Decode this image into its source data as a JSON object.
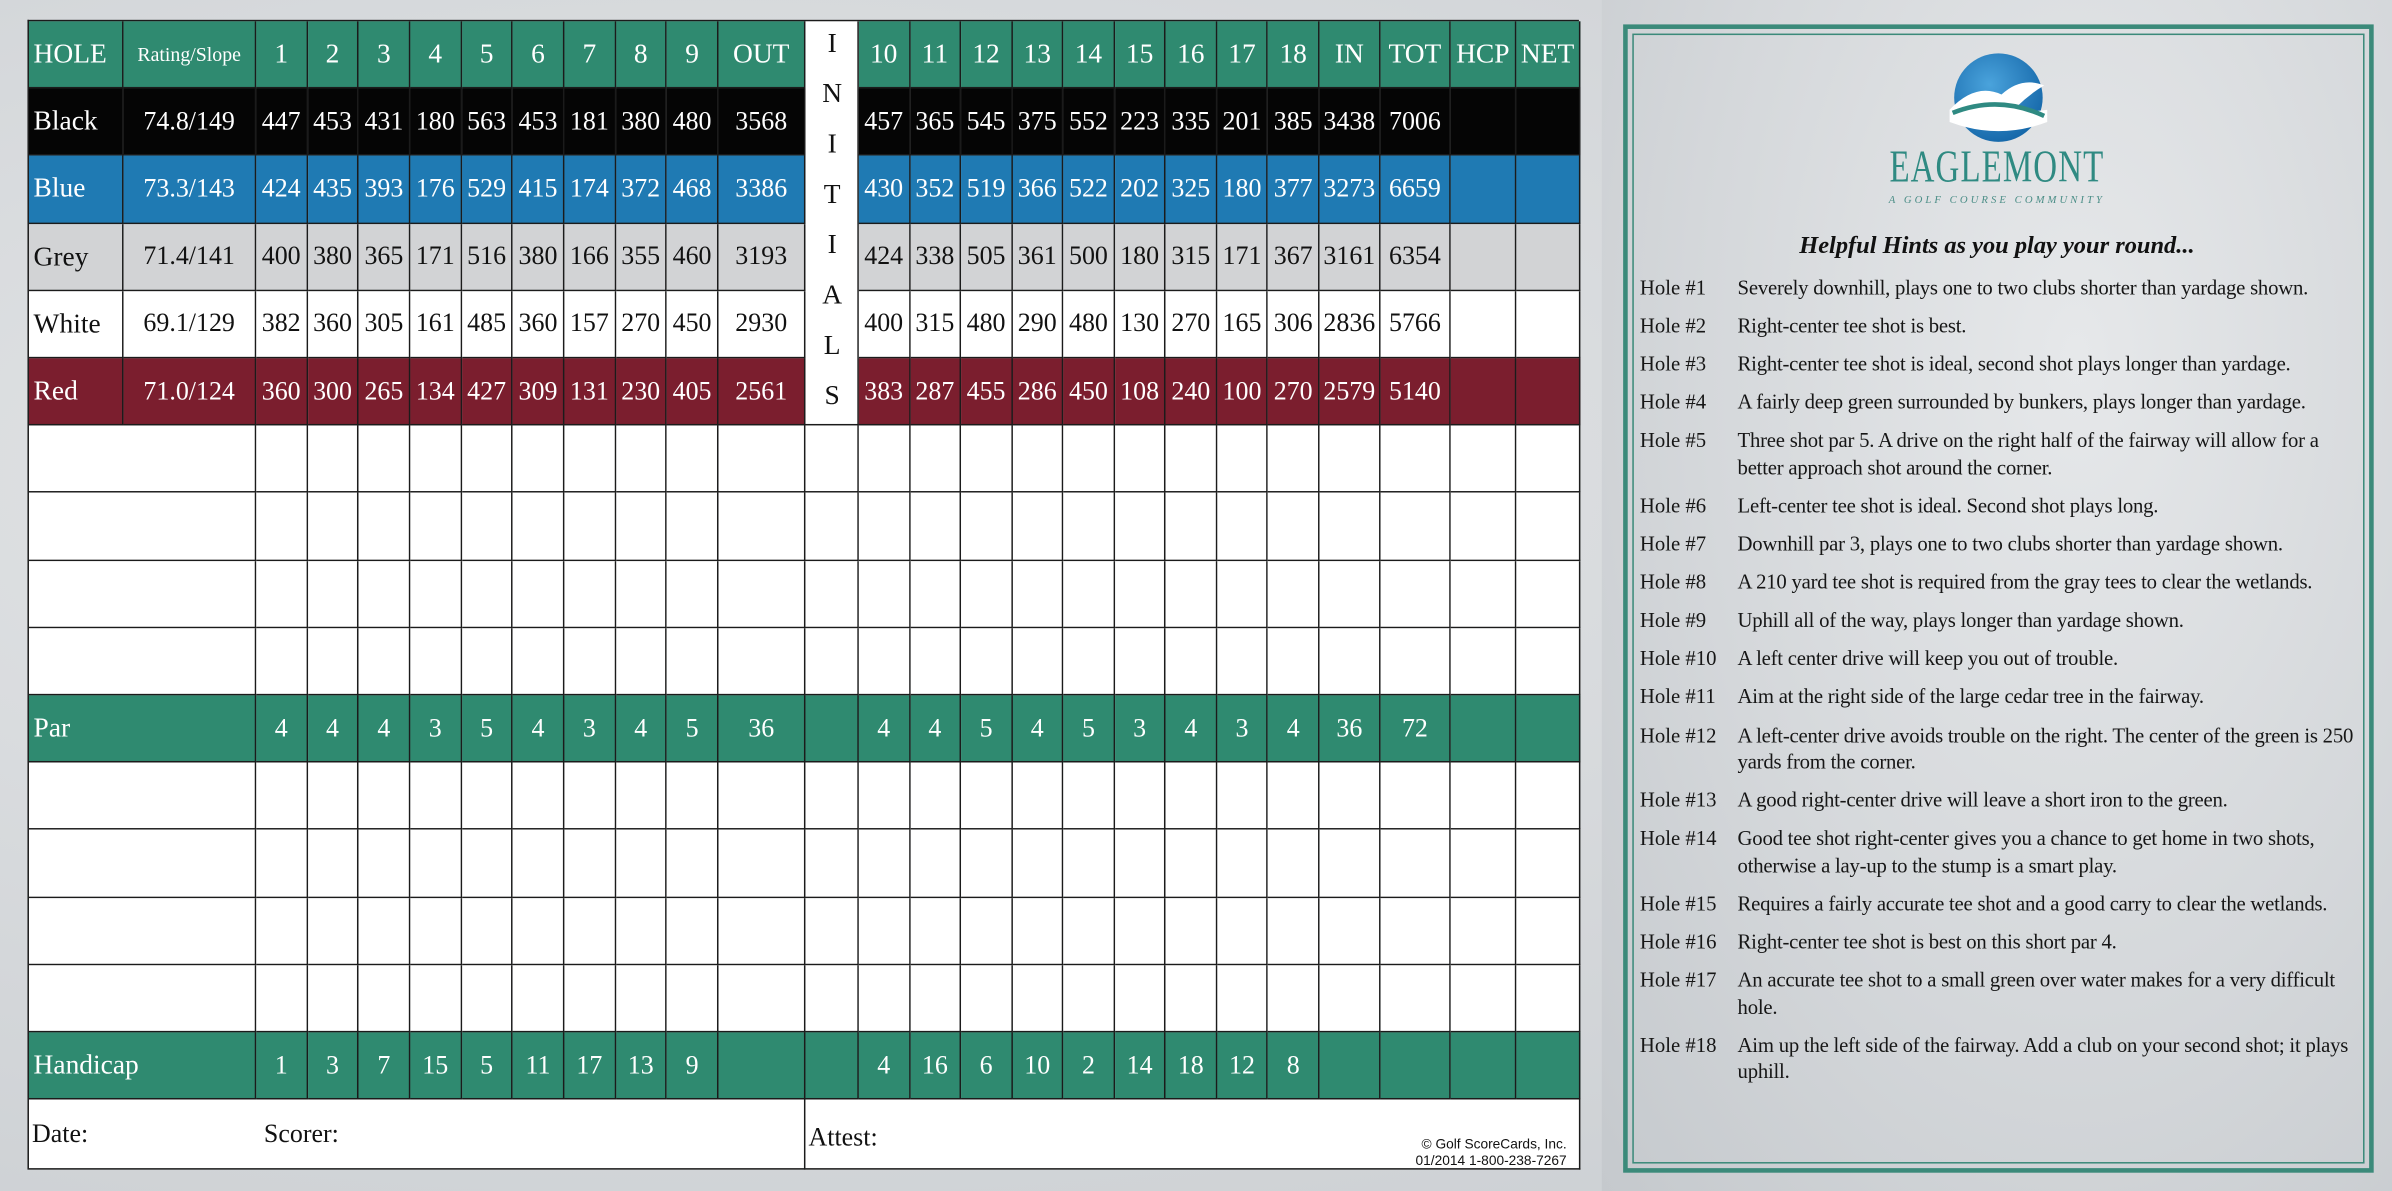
{
  "scorecard": {
    "header": [
      "HOLE",
      "Rating/Slope",
      "1",
      "2",
      "3",
      "4",
      "5",
      "6",
      "7",
      "8",
      "9",
      "OUT",
      "10",
      "11",
      "12",
      "13",
      "14",
      "15",
      "16",
      "17",
      "18",
      "IN",
      "TOT",
      "HCP",
      "NET"
    ],
    "initials": "INITIALS",
    "tees": [
      {
        "name": "Black",
        "rating": "74.8/149",
        "color": "#050505",
        "text_color": "#ffffff",
        "front": [
          447,
          453,
          431,
          180,
          563,
          453,
          181,
          380,
          480
        ],
        "out": 3568,
        "back": [
          457,
          365,
          545,
          375,
          552,
          223,
          335,
          201,
          385
        ],
        "in": 3438,
        "total": 7006
      },
      {
        "name": "Blue",
        "rating": "73.3/143",
        "color": "#1f7ab3",
        "text_color": "#ffffff",
        "front": [
          424,
          435,
          393,
          176,
          529,
          415,
          174,
          372,
          468
        ],
        "out": 3386,
        "back": [
          430,
          352,
          519,
          366,
          522,
          202,
          325,
          180,
          377
        ],
        "in": 3273,
        "total": 6659
      },
      {
        "name": "Grey",
        "rating": "71.4/141",
        "color": "#d2d3d5",
        "text_color": "#111111",
        "front": [
          400,
          380,
          365,
          171,
          516,
          380,
          166,
          355,
          460
        ],
        "out": 3193,
        "back": [
          424,
          338,
          505,
          361,
          500,
          180,
          315,
          171,
          367
        ],
        "in": 3161,
        "total": 6354
      },
      {
        "name": "White",
        "rating": "69.1/129",
        "color": "#ffffff",
        "text_color": "#111111",
        "front": [
          382,
          360,
          305,
          161,
          485,
          360,
          157,
          270,
          450
        ],
        "out": 2930,
        "back": [
          400,
          315,
          480,
          290,
          480,
          130,
          270,
          165,
          306
        ],
        "in": 2836,
        "total": 5766
      },
      {
        "name": "Red",
        "rating": "71.0/124",
        "color": "#7b1e2e",
        "text_color": "#ffffff",
        "front": [
          360,
          300,
          265,
          134,
          427,
          309,
          131,
          230,
          405
        ],
        "out": 2561,
        "back": [
          383,
          287,
          455,
          286,
          450,
          108,
          240,
          100,
          270
        ],
        "in": 2579,
        "total": 5140
      }
    ],
    "par": {
      "label": "Par",
      "front": [
        4,
        4,
        4,
        3,
        5,
        4,
        3,
        4,
        5
      ],
      "out": 36,
      "back": [
        4,
        4,
        5,
        4,
        5,
        3,
        4,
        3,
        4
      ],
      "in": 36,
      "total": 72
    },
    "handicap": {
      "label": "Handicap",
      "front": [
        1,
        3,
        7,
        15,
        5,
        11,
        17,
        13,
        9
      ],
      "back": [
        4,
        16,
        6,
        10,
        2,
        14,
        18,
        12,
        8
      ]
    },
    "footer": {
      "date": "Date:",
      "scorer": "Scorer:",
      "attest": "Attest:",
      "copyright": "© Golf ScoreCards, Inc.",
      "print_info": "01/2014  1-800-238-7267"
    }
  },
  "hints_panel": {
    "logo_name": "EAGLEMONT",
    "logo_tagline": "A GOLF COURSE COMMUNITY",
    "title": "Helpful Hints as you play your round...",
    "hints": [
      {
        "hole": "Hole #1",
        "text": "Severely downhill, plays one to two clubs shorter than yardage shown."
      },
      {
        "hole": "Hole #2",
        "text": "Right-center tee shot is best."
      },
      {
        "hole": "Hole #3",
        "text": "Right-center tee shot is ideal, second shot plays longer than yardage."
      },
      {
        "hole": "Hole #4",
        "text": "A fairly deep green surrounded by bunkers, plays longer than yardage."
      },
      {
        "hole": "Hole #5",
        "text": "Three shot par 5. A drive on the right half of the fairway will allow for a better approach shot around the corner."
      },
      {
        "hole": "Hole #6",
        "text": "Left-center tee shot is ideal. Second shot plays long."
      },
      {
        "hole": "Hole #7",
        "text": "Downhill par 3, plays one to two clubs shorter than yardage shown."
      },
      {
        "hole": "Hole #8",
        "text": "A 210 yard tee shot is required from the gray tees to clear the wetlands."
      },
      {
        "hole": "Hole #9",
        "text": "Uphill all of the way, plays longer than yardage shown."
      },
      {
        "hole": "Hole #10",
        "text": "A left center drive will keep you out of trouble."
      },
      {
        "hole": "Hole #11",
        "text": "Aim at the right side of the large cedar tree in the fairway."
      },
      {
        "hole": "Hole #12",
        "text": "A left-center drive avoids trouble on the right. The center of the green is 250 yards from the corner."
      },
      {
        "hole": "Hole #13",
        "text": "A good right-center drive will leave a short iron to the green."
      },
      {
        "hole": "Hole #14",
        "text": "Good tee shot right-center gives you a chance to get home in two shots, otherwise a lay-up to the stump is a smart play."
      },
      {
        "hole": "Hole #15",
        "text": "Requires a fairly accurate tee shot and a good carry to clear the wetlands."
      },
      {
        "hole": "Hole #16",
        "text": "Right-center tee shot is best on this short par 4."
      },
      {
        "hole": "Hole #17",
        "text": "An accurate tee shot to a small green over water makes for a very difficult hole."
      },
      {
        "hole": "Hole #18",
        "text": "Aim up the left side of the fairway. Add a club on your second shot; it plays uphill."
      }
    ]
  }
}
